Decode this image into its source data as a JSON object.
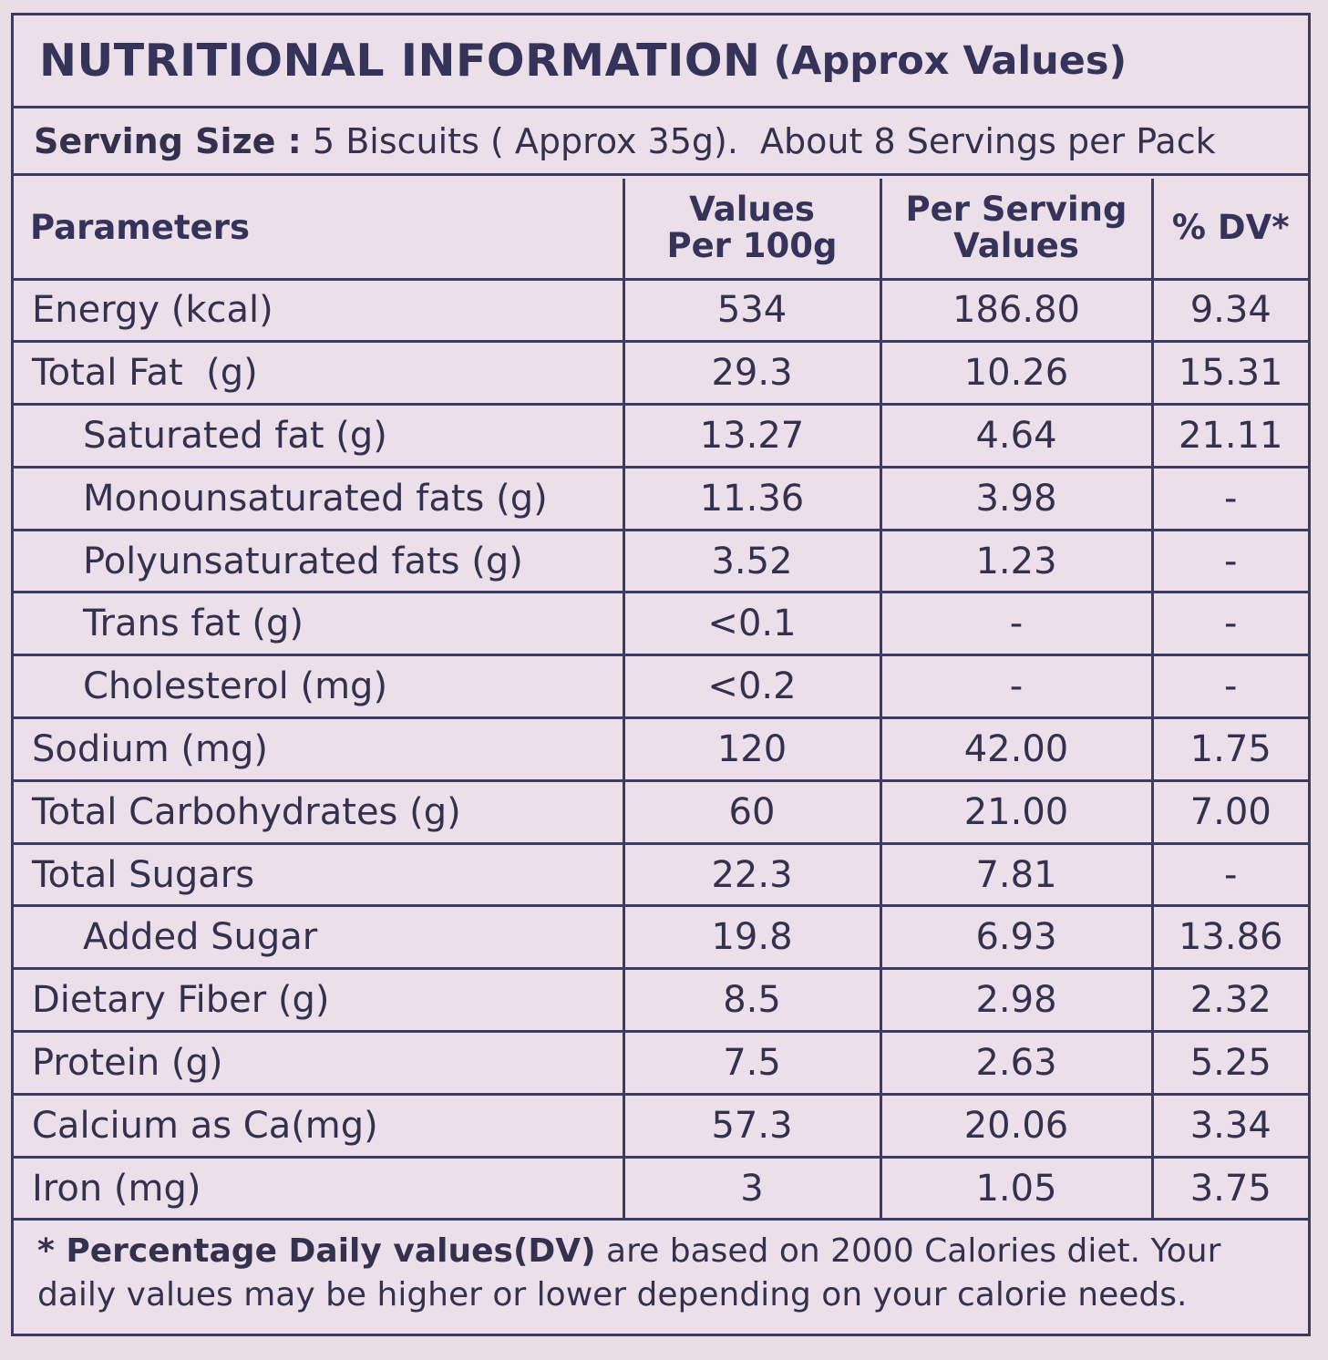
{
  "title": {
    "main": "NUTRITIONAL INFORMATION",
    "sub": "(Approx Values)"
  },
  "serving": {
    "label": "Serving Size :",
    "text": " 5 Biscuits ( Approx 35g).  About 8 Servings per Pack"
  },
  "table": {
    "headers": [
      "Parameters",
      "Values Per 100g",
      "Per Serving Values",
      "% DV*"
    ],
    "rows": [
      {
        "label": "Energy (kcal)",
        "per100g": "534",
        "perServing": "186.80",
        "dv": "9.34"
      },
      {
        "label": "Total Fat  (g)",
        "per100g": "29.3",
        "perServing": "10.26",
        "dv": "15.31"
      },
      {
        "label": "Saturated fat (g)",
        "per100g": "13.27",
        "perServing": "4.64",
        "dv": "21.11"
      },
      {
        "label": "Monounsaturated fats (g)",
        "per100g": "11.36",
        "perServing": "3.98",
        "dv": "-"
      },
      {
        "label": "Polyunsaturated fats (g)",
        "per100g": "3.52",
        "perServing": "1.23",
        "dv": "-"
      },
      {
        "label": "Trans fat (g)",
        "per100g": "<0.1",
        "perServing": "-",
        "dv": "-"
      },
      {
        "label": "Cholesterol (mg)",
        "per100g": "<0.2",
        "perServing": "-",
        "dv": "-"
      },
      {
        "label": "Sodium (mg)",
        "per100g": "120",
        "perServing": "42.00",
        "dv": "1.75"
      },
      {
        "label": "Total Carbohydrates (g)",
        "per100g": "60",
        "perServing": "21.00",
        "dv": "7.00"
      },
      {
        "label": "Total Sugars",
        "per100g": "22.3",
        "perServing": "7.81",
        "dv": "-"
      },
      {
        "label": "Added Sugar",
        "per100g": "19.8",
        "perServing": "6.93",
        "dv": "13.86"
      },
      {
        "label": "Dietary Fiber (g)",
        "per100g": "8.5",
        "perServing": "2.98",
        "dv": "2.32"
      },
      {
        "label": "Protein (g)",
        "per100g": "7.5",
        "perServing": "2.63",
        "dv": "5.25"
      },
      {
        "label": "Calcium as Ca(mg)",
        "per100g": "57.3",
        "perServing": "20.06",
        "dv": "3.34"
      },
      {
        "label": "Iron (mg)",
        "per100g": "3",
        "perServing": "1.05",
        "dv": "3.75"
      }
    ]
  },
  "footnote": {
    "bold": "* Percentage Daily values(DV)",
    "line1_rest": " are based on 2000 Calories diet. Your",
    "line2": "daily values may be higher or lower depending on your calorie needs."
  },
  "colors": {
    "ink": "#34314f",
    "border": "#3d3a63",
    "background": "#ebe0ea"
  }
}
